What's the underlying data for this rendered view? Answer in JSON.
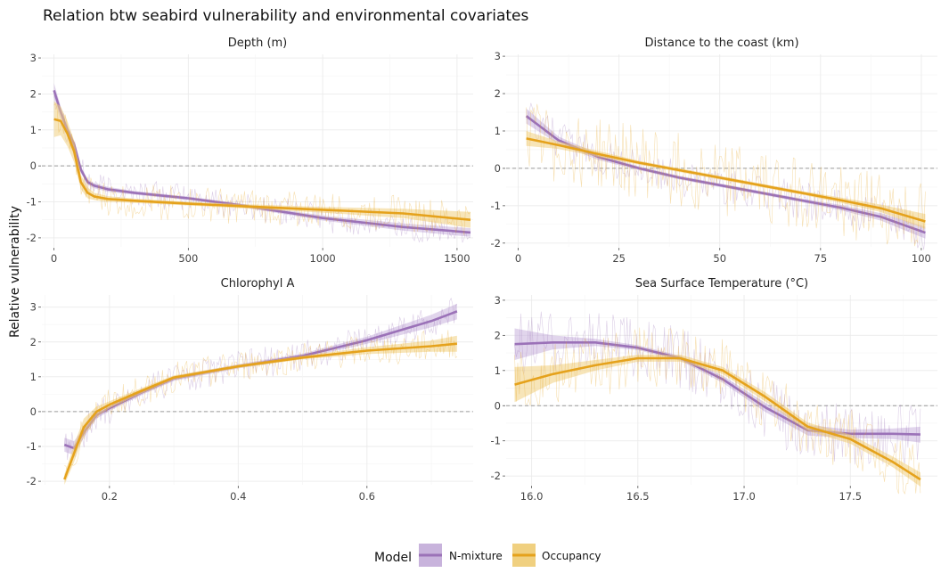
{
  "title": "Relation btw seabird vulnerability and environmental covariates",
  "ylabel": "Relative vulnerability",
  "legend": {
    "title": "Model",
    "placement": "bottom",
    "items": [
      {
        "label": "N-mixture",
        "color": "#9b72b8",
        "band": "#c8b3dc"
      },
      {
        "label": "Occupancy",
        "color": "#e5a21c",
        "band": "#f0d080"
      }
    ]
  },
  "chart_data": [
    {
      "type": "line",
      "title": "Depth (m)",
      "xlim": [
        -45,
        1560
      ],
      "ylim": [
        -2.25,
        3.1
      ],
      "xticks": [
        0,
        500,
        1000,
        1500
      ],
      "xtick_labels": [
        "0",
        "500",
        "1000",
        "1500"
      ],
      "yticks": [
        -2,
        -1,
        0,
        1,
        2,
        3
      ],
      "ytick_labels": [
        "-2",
        "-1",
        "0",
        "1",
        "2",
        "3"
      ],
      "hline": 0,
      "grid": true,
      "series": [
        {
          "name": "N-mixture",
          "x": [
            0,
            25,
            50,
            75,
            100,
            125,
            150,
            200,
            300,
            500,
            700,
            1000,
            1300,
            1550
          ],
          "y": [
            2.1,
            1.5,
            1.0,
            0.6,
            -0.1,
            -0.45,
            -0.55,
            -0.65,
            -0.75,
            -0.9,
            -1.1,
            -1.45,
            -1.7,
            -1.85
          ],
          "lower": [
            1.9,
            1.35,
            0.88,
            0.5,
            -0.2,
            -0.52,
            -0.62,
            -0.72,
            -0.8,
            -0.95,
            -1.15,
            -1.52,
            -1.8,
            -1.97
          ],
          "upper": [
            2.3,
            1.65,
            1.12,
            0.7,
            0.0,
            -0.38,
            -0.48,
            -0.58,
            -0.7,
            -0.85,
            -1.05,
            -1.38,
            -1.6,
            -1.73
          ],
          "noise": 0.4
        },
        {
          "name": "Occupancy",
          "x": [
            0,
            25,
            50,
            75,
            100,
            125,
            150,
            200,
            300,
            500,
            700,
            1000,
            1300,
            1550
          ],
          "y": [
            1.3,
            1.25,
            0.9,
            0.4,
            -0.45,
            -0.75,
            -0.85,
            -0.92,
            -0.97,
            -1.05,
            -1.12,
            -1.22,
            -1.32,
            -1.5
          ],
          "lower": [
            0.8,
            0.85,
            0.55,
            0.1,
            -0.65,
            -0.9,
            -0.95,
            -1.0,
            -1.03,
            -1.1,
            -1.18,
            -1.3,
            -1.45,
            -1.72
          ],
          "upper": [
            1.8,
            1.65,
            1.25,
            0.7,
            -0.25,
            -0.6,
            -0.75,
            -0.84,
            -0.91,
            -1.0,
            -1.06,
            -1.14,
            -1.19,
            -1.28
          ],
          "noise": 0.5
        }
      ]
    },
    {
      "type": "line",
      "title": "Distance to the coast (km)",
      "xlim": [
        -3,
        104
      ],
      "ylim": [
        -2.1,
        3.05
      ],
      "xticks": [
        0,
        25,
        50,
        75,
        100
      ],
      "xtick_labels": [
        "0",
        "25",
        "50",
        "75",
        "100"
      ],
      "yticks": [
        -2,
        -1,
        0,
        1,
        2,
        3
      ],
      "ytick_labels": [
        "-2",
        "-1",
        "0",
        "1",
        "2",
        "3"
      ],
      "hline": 0,
      "grid": true,
      "series": [
        {
          "name": "N-mixture",
          "x": [
            2,
            10,
            20,
            30,
            40,
            50,
            60,
            70,
            80,
            90,
            101
          ],
          "y": [
            1.4,
            0.75,
            0.3,
            0.0,
            -0.25,
            -0.45,
            -0.65,
            -0.85,
            -1.05,
            -1.3,
            -1.72
          ],
          "lower": [
            1.2,
            0.65,
            0.22,
            -0.05,
            -0.3,
            -0.5,
            -0.7,
            -0.9,
            -1.12,
            -1.4,
            -1.88
          ],
          "upper": [
            1.6,
            0.85,
            0.38,
            0.05,
            -0.2,
            -0.4,
            -0.6,
            -0.8,
            -0.98,
            -1.2,
            -1.56
          ],
          "noise": 0.5
        },
        {
          "name": "Occupancy",
          "x": [
            2,
            10,
            20,
            30,
            40,
            50,
            60,
            70,
            80,
            90,
            101
          ],
          "y": [
            0.8,
            0.62,
            0.38,
            0.15,
            -0.05,
            -0.25,
            -0.45,
            -0.65,
            -0.85,
            -1.07,
            -1.42
          ],
          "lower": [
            0.6,
            0.52,
            0.3,
            0.1,
            -0.1,
            -0.3,
            -0.5,
            -0.7,
            -0.92,
            -1.17,
            -1.62
          ],
          "upper": [
            1.0,
            0.72,
            0.46,
            0.2,
            0.0,
            -0.2,
            -0.4,
            -0.6,
            -0.78,
            -0.97,
            -1.22
          ],
          "noise": 1.0
        }
      ]
    },
    {
      "type": "line",
      "title": "Chlorophyl A",
      "xlim": [
        0.095,
        0.765
      ],
      "ylim": [
        -2.1,
        3.35
      ],
      "xticks": [
        0.2,
        0.4,
        0.6
      ],
      "xtick_labels": [
        "0.2",
        "0.4",
        "0.6"
      ],
      "yticks": [
        -2,
        -1,
        0,
        1,
        2,
        3
      ],
      "ytick_labels": [
        "-2",
        "-1",
        "0",
        "1",
        "2",
        "3"
      ],
      "hline": 0,
      "grid": true,
      "series": [
        {
          "name": "N-mixture",
          "x": [
            0.13,
            0.145,
            0.16,
            0.18,
            0.2,
            0.25,
            0.3,
            0.4,
            0.5,
            0.6,
            0.7,
            0.74
          ],
          "y": [
            -0.95,
            -1.05,
            -0.6,
            -0.1,
            0.1,
            0.55,
            0.95,
            1.3,
            1.6,
            2.05,
            2.6,
            2.88
          ],
          "lower": [
            -1.15,
            -1.25,
            -0.75,
            -0.2,
            0.02,
            0.48,
            0.88,
            1.24,
            1.53,
            1.95,
            2.42,
            2.65
          ],
          "upper": [
            -0.75,
            -0.85,
            -0.45,
            0.0,
            0.18,
            0.62,
            1.02,
            1.36,
            1.67,
            2.15,
            2.78,
            3.1
          ],
          "noise": 0.45
        },
        {
          "name": "Occupancy",
          "x": [
            0.13,
            0.145,
            0.16,
            0.18,
            0.2,
            0.25,
            0.3,
            0.4,
            0.5,
            0.6,
            0.7,
            0.74
          ],
          "y": [
            -1.95,
            -1.2,
            -0.45,
            0.0,
            0.2,
            0.6,
            0.98,
            1.3,
            1.55,
            1.75,
            1.88,
            1.95
          ],
          "lower": [
            -2.1,
            -1.45,
            -0.7,
            -0.15,
            0.1,
            0.52,
            0.92,
            1.25,
            1.5,
            1.65,
            1.72,
            1.72
          ],
          "upper": [
            -1.8,
            -0.95,
            -0.2,
            0.15,
            0.3,
            0.68,
            1.04,
            1.35,
            1.6,
            1.85,
            2.04,
            2.18
          ],
          "noise": 0.45
        }
      ]
    },
    {
      "type": "line",
      "title": "Sea Surface Temperature (°C)",
      "xlim": [
        15.88,
        17.91
      ],
      "ylim": [
        -2.25,
        3.15
      ],
      "xticks": [
        16.0,
        16.5,
        17.0,
        17.5
      ],
      "xtick_labels": [
        "16.0",
        "16.5",
        "17.0",
        "17.5"
      ],
      "yticks": [
        -2,
        -1,
        0,
        1,
        2,
        3
      ],
      "ytick_labels": [
        "-2",
        "-1",
        "0",
        "1",
        "2",
        "3"
      ],
      "hline": 0,
      "grid": true,
      "series": [
        {
          "name": "N-mixture",
          "x": [
            15.92,
            16.1,
            16.3,
            16.5,
            16.7,
            16.9,
            17.1,
            17.3,
            17.5,
            17.7,
            17.83
          ],
          "y": [
            1.75,
            1.8,
            1.8,
            1.65,
            1.35,
            0.75,
            -0.05,
            -0.7,
            -0.8,
            -0.8,
            -0.82
          ],
          "lower": [
            1.3,
            1.6,
            1.7,
            1.58,
            1.28,
            0.65,
            -0.18,
            -0.85,
            -0.92,
            -0.95,
            -1.05
          ],
          "upper": [
            2.2,
            2.0,
            1.9,
            1.72,
            1.42,
            0.85,
            0.08,
            -0.55,
            -0.68,
            -0.65,
            -0.6
          ],
          "noise": 0.9
        },
        {
          "name": "Occupancy",
          "x": [
            15.92,
            16.1,
            16.3,
            16.5,
            16.7,
            16.9,
            17.1,
            17.3,
            17.5,
            17.7,
            17.83
          ],
          "y": [
            0.6,
            0.9,
            1.15,
            1.35,
            1.35,
            1.0,
            0.25,
            -0.6,
            -0.95,
            -1.6,
            -2.1
          ],
          "lower": [
            0.1,
            0.65,
            1.0,
            1.25,
            1.25,
            0.9,
            0.12,
            -0.72,
            -1.08,
            -1.75,
            -2.3
          ],
          "upper": [
            1.1,
            1.15,
            1.3,
            1.45,
            1.45,
            1.1,
            0.38,
            -0.48,
            -0.82,
            -1.45,
            -1.9
          ],
          "noise": 0.9
        }
      ]
    }
  ]
}
